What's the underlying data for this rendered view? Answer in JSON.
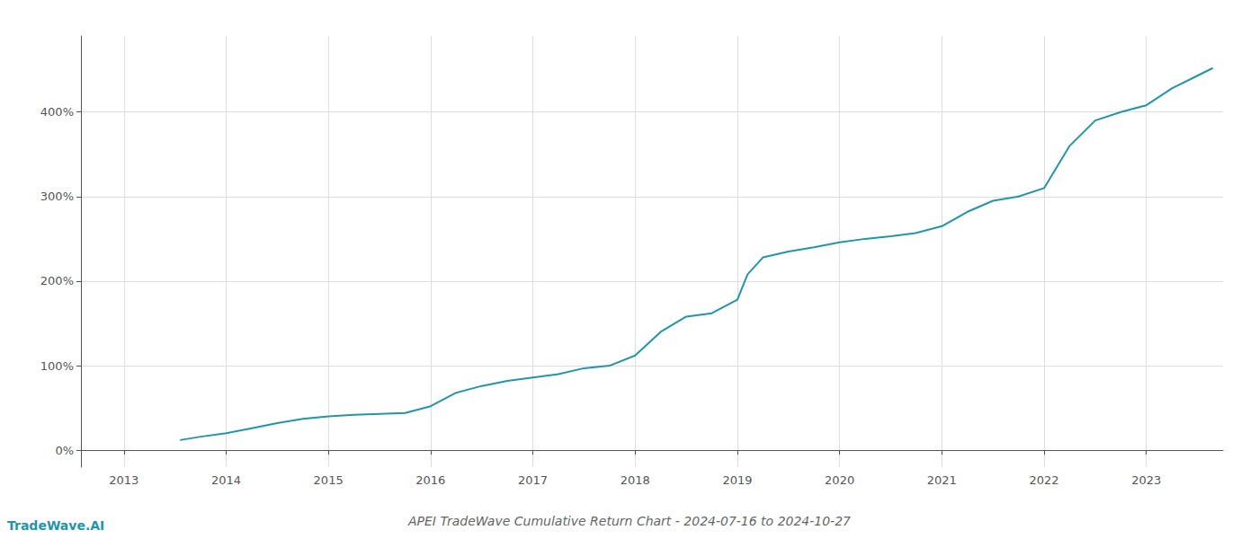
{
  "chart_data": {
    "type": "line",
    "title": "APEI TradeWave Cumulative Return Chart - 2024-07-16 to 2024-10-27",
    "annotations": [
      "TradeWave.AI"
    ],
    "color": "#2196a8",
    "grid": true,
    "x": [
      2013.55,
      2013.75,
      2014.0,
      2014.25,
      2014.5,
      2014.75,
      2015.0,
      2015.25,
      2015.5,
      2015.75,
      2016.0,
      2016.25,
      2016.5,
      2016.75,
      2017.0,
      2017.25,
      2017.5,
      2017.75,
      2018.0,
      2018.25,
      2018.5,
      2018.75,
      2019.0,
      2019.1,
      2019.25,
      2019.5,
      2019.75,
      2020.0,
      2020.25,
      2020.5,
      2020.75,
      2021.0,
      2021.25,
      2021.5,
      2021.75,
      2022.0,
      2022.25,
      2022.5,
      2022.75,
      2023.0,
      2023.25,
      2023.5,
      2023.65
    ],
    "values": [
      12,
      16,
      20,
      26,
      32,
      37,
      40,
      42,
      43,
      44,
      52,
      68,
      76,
      82,
      86,
      90,
      97,
      100,
      112,
      140,
      158,
      162,
      178,
      208,
      228,
      235,
      240,
      246,
      250,
      253,
      257,
      265,
      282,
      295,
      300,
      310,
      360,
      390,
      400,
      408,
      428,
      443,
      452
    ],
    "xlim": [
      2012.58,
      2023.75
    ],
    "xticks": [
      2013,
      2014,
      2015,
      2016,
      2017,
      2018,
      2019,
      2020,
      2021,
      2022,
      2023
    ],
    "ylim": [
      -20,
      490
    ],
    "yticks": [
      {
        "value": 0,
        "label": "0%"
      },
      {
        "value": 100,
        "label": "100%"
      },
      {
        "value": 200,
        "label": "200%"
      },
      {
        "value": 300,
        "label": "300%"
      },
      {
        "value": 400,
        "label": "400%"
      }
    ]
  }
}
